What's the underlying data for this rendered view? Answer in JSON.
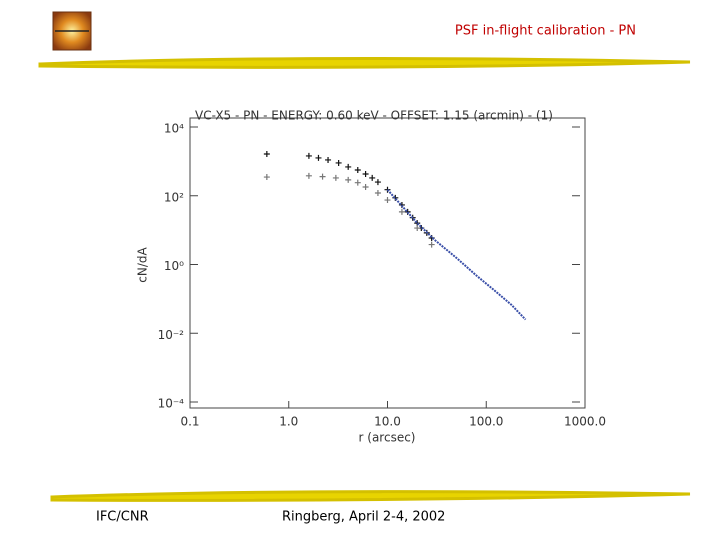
{
  "header": {
    "title": "PSF in-flight calibration - PN"
  },
  "footer": {
    "left": "IFC/CNR",
    "center": "Ringberg, April 2-4, 2002"
  },
  "chart_data": {
    "type": "scatter",
    "title": "VC-X5 - PN - ENERGY: 0.60 keV - OFFSET: 1.15 (arcmin) - (1)",
    "xlabel": "r (arcsec)",
    "ylabel": "cN/dA",
    "xscale": "log",
    "yscale": "log",
    "xlim": [
      0.1,
      1000
    ],
    "ylim": [
      0.0001,
      10000
    ],
    "xticks": [
      0.1,
      {
        "value": 1,
        "label": "1.0"
      },
      {
        "value": 10,
        "label": "10.0"
      },
      {
        "value": 100,
        "label": "100.0"
      },
      {
        "value": 1000,
        "label": "1000.0"
      }
    ],
    "yticks": [
      {
        "value": 10000,
        "label": "10⁴"
      },
      {
        "value": 100,
        "label": "10²"
      },
      {
        "value": 1,
        "label": "10⁰"
      },
      {
        "value": 0.01,
        "label": "10⁻²"
      },
      {
        "value": 0.0001,
        "label": "10⁻⁴"
      }
    ],
    "series": [
      {
        "color": "#111111",
        "marker": "plus",
        "x": [
          0.6,
          1.6,
          2.0,
          2.5,
          3.2,
          4,
          5,
          6,
          7,
          8,
          10,
          12,
          14,
          16,
          18,
          20,
          22,
          25,
          28
        ],
        "values": [
          1640,
          1440,
          1260,
          1100,
          900,
          690,
          560,
          430,
          330,
          250,
          150,
          87,
          54,
          34,
          23,
          16,
          11.5,
          8.3,
          5.9
        ]
      },
      {
        "color": "#777777",
        "marker": "plus",
        "x": [
          0.6,
          1.6,
          2.2,
          3,
          4,
          5,
          6,
          8,
          10,
          14,
          20,
          28
        ],
        "values": [
          350,
          380,
          360,
          330,
          290,
          240,
          180,
          120,
          75,
          34,
          11.5,
          3.8
        ]
      },
      {
        "color": "#3a4fa8",
        "marker": "line",
        "x": [
          10,
          20,
          30,
          50,
          80,
          120,
          180,
          250
        ],
        "values": [
          150,
          16,
          5.2,
          1.55,
          0.47,
          0.18,
          0.067,
          0.025
        ]
      }
    ]
  }
}
